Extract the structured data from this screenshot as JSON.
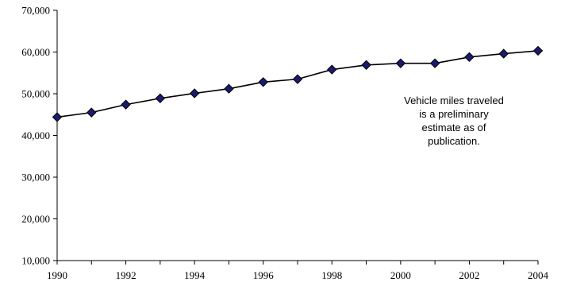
{
  "chart_data": {
    "type": "line",
    "title": "",
    "xlabel": "",
    "ylabel": "",
    "x": [
      1990,
      1991,
      1992,
      1993,
      1994,
      1995,
      1996,
      1997,
      1998,
      1999,
      2000,
      2001,
      2002,
      2003,
      2004
    ],
    "series": [
      {
        "values": [
          44400,
          45500,
          47400,
          48900,
          50100,
          51200,
          52800,
          53500,
          55800,
          56900,
          57300,
          57300,
          58800,
          59600,
          60300
        ]
      }
    ],
    "xlim": [
      1990,
      2004
    ],
    "ylim": [
      10000,
      70000
    ],
    "y_ticks": [
      10000,
      20000,
      30000,
      40000,
      50000,
      60000,
      70000
    ],
    "y_tick_labels": [
      "10,000",
      "20,000",
      "30,000",
      "40,000",
      "50,000",
      "60,000",
      "70,000"
    ],
    "x_ticks": [
      1990,
      1992,
      1994,
      1996,
      1998,
      2000,
      2002,
      2004
    ],
    "x_tick_labels": [
      "1990",
      "1992",
      "1994",
      "1996",
      "1998",
      "2000",
      "2002",
      "2004"
    ],
    "grid": false,
    "marker": "diamond",
    "colors": {
      "line": "#000000",
      "marker_fill": "#1a1a6e",
      "marker_stroke": "#000000",
      "axis": "#000000"
    },
    "annotation": {
      "lines": [
        "Vehicle miles traveled",
        "is a preliminary",
        "estimate as of",
        "publication."
      ]
    }
  }
}
